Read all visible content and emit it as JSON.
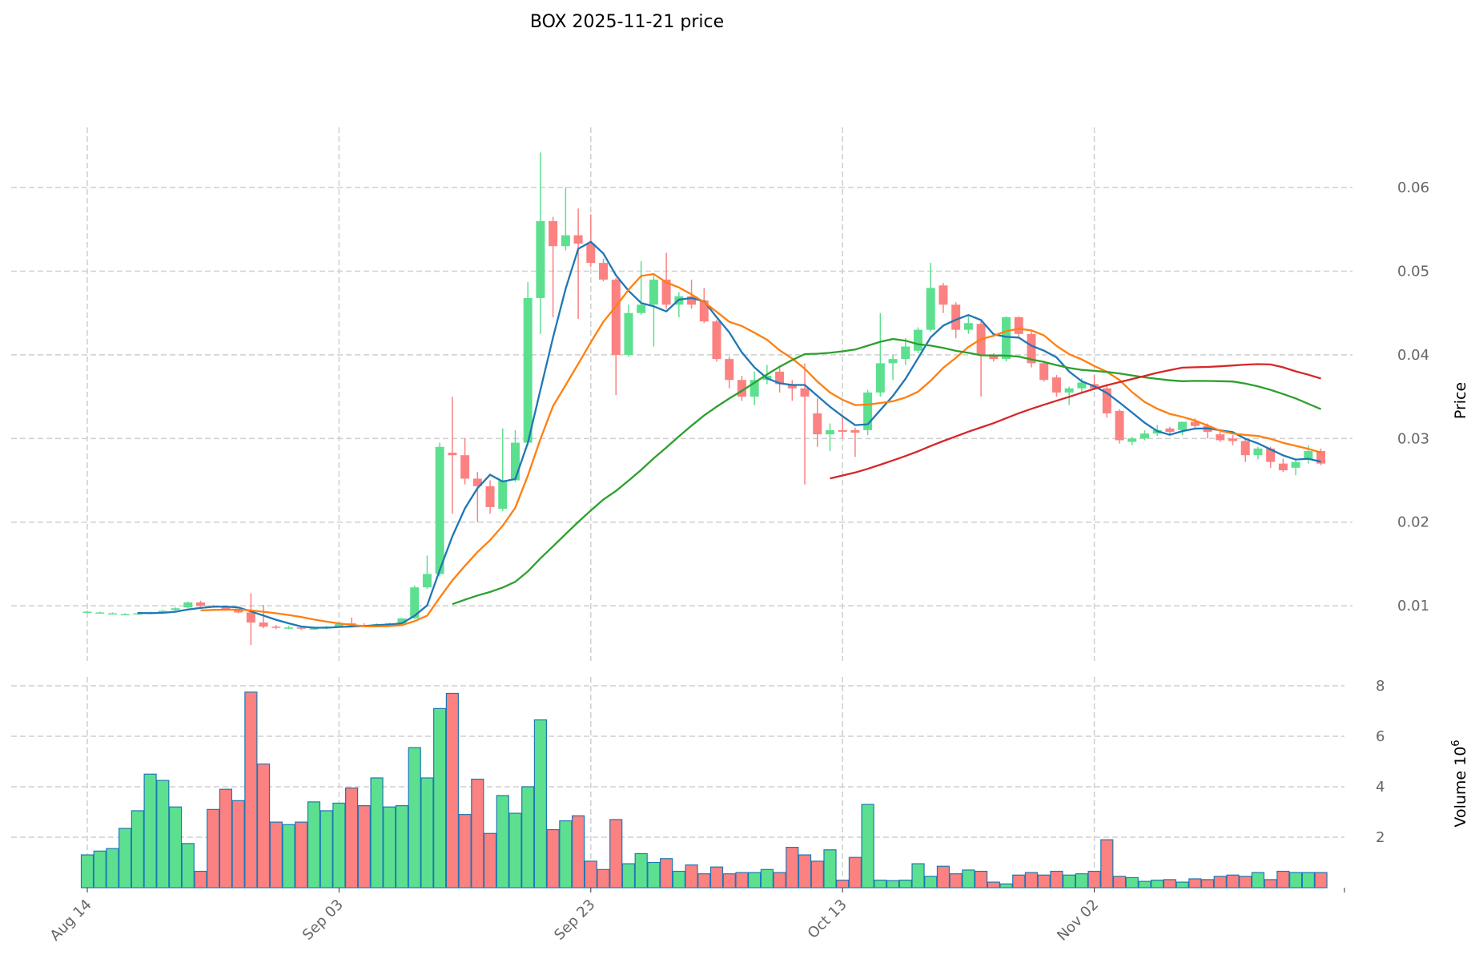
{
  "chart_data": {
    "type": "candlestick",
    "title": "BOX  2025-11-21  price",
    "ylabel": "Price",
    "volume_ylabel": "Volume  10",
    "volume_ylabel_exp": "6",
    "ylim": [
      0.0034,
      0.0672
    ],
    "volume_ylim": [
      0,
      8.35
    ],
    "y_ticks": [
      "0.01",
      "0.02",
      "0.03",
      "0.04",
      "0.05",
      "0.06"
    ],
    "y_tick_values": [
      0.01,
      0.02,
      0.03,
      0.04,
      0.05,
      0.06
    ],
    "volume_ticks": [
      "2",
      "4",
      "6",
      "8"
    ],
    "volume_tick_values": [
      2,
      4,
      6,
      8
    ],
    "x_ticks": [
      "Aug 14",
      "Sep 03",
      "Sep 23",
      "Oct 13",
      "Nov 02"
    ],
    "x_tick_days": [
      0,
      20,
      40,
      60,
      80
    ],
    "start_date": "Aug 14",
    "grid": true,
    "colors": {
      "up": "#5ce08f",
      "down": "#fc8181",
      "volume_edge": "#1f77b4",
      "ma": [
        "#1f77b4",
        "#ff7f0e",
        "#2ca02c",
        "#d62728"
      ]
    },
    "ma_windows": [
      5,
      10,
      30,
      60
    ],
    "open": [
      0.0092,
      0.0092,
      0.0091,
      0.009,
      0.009,
      0.0091,
      0.0092,
      0.0095,
      0.0098,
      0.0104,
      0.01,
      0.0099,
      0.0095,
      0.0092,
      0.008,
      0.0075,
      0.0074,
      0.0074,
      0.0073,
      0.0073,
      0.0075,
      0.0079,
      0.0077,
      0.0076,
      0.0078,
      0.0079,
      0.0085,
      0.0122,
      0.0138,
      0.0283,
      0.028,
      0.0252,
      0.0243,
      0.0216,
      0.025,
      0.0295,
      0.0468,
      0.056,
      0.053,
      0.0543,
      0.0533,
      0.051,
      0.049,
      0.04,
      0.045,
      0.046,
      0.049,
      0.046,
      0.047,
      0.0465,
      0.044,
      0.0395,
      0.037,
      0.035,
      0.037,
      0.038,
      0.0365,
      0.036,
      0.033,
      0.0305,
      0.031,
      0.031,
      0.031,
      0.0355,
      0.039,
      0.0395,
      0.0405,
      0.043,
      0.0483,
      0.046,
      0.043,
      0.0437,
      0.04,
      0.0395,
      0.0445,
      0.0425,
      0.039,
      0.0373,
      0.0355,
      0.036,
      0.0365,
      0.036,
      0.0333,
      0.0296,
      0.03,
      0.0306,
      0.0312,
      0.031,
      0.032,
      0.0315,
      0.0305,
      0.03,
      0.0297,
      0.028,
      0.0288,
      0.027,
      0.0265,
      0.0275,
      0.0285
    ],
    "high": [
      0.0094,
      0.0093,
      0.0092,
      0.0091,
      0.0092,
      0.0093,
      0.0095,
      0.0098,
      0.0105,
      0.0106,
      0.0101,
      0.01,
      0.0096,
      0.0115,
      0.0101,
      0.0077,
      0.0076,
      0.0075,
      0.0075,
      0.0076,
      0.008,
      0.0086,
      0.0079,
      0.0079,
      0.008,
      0.0085,
      0.0124,
      0.016,
      0.0295,
      0.035,
      0.03,
      0.026,
      0.025,
      0.0312,
      0.031,
      0.0487,
      0.0642,
      0.0565,
      0.06,
      0.0575,
      0.0568,
      0.0515,
      0.0492,
      0.046,
      0.0512,
      0.0495,
      0.0522,
      0.0475,
      0.049,
      0.048,
      0.0442,
      0.0398,
      0.0375,
      0.038,
      0.0388,
      0.0386,
      0.037,
      0.039,
      0.0348,
      0.0318,
      0.0328,
      0.0313,
      0.0358,
      0.045,
      0.04,
      0.042,
      0.0433,
      0.051,
      0.0486,
      0.0463,
      0.0446,
      0.044,
      0.0402,
      0.0446,
      0.0446,
      0.0428,
      0.0393,
      0.0376,
      0.0362,
      0.0372,
      0.0376,
      0.0365,
      0.0335,
      0.0302,
      0.031,
      0.0316,
      0.0314,
      0.0318,
      0.0324,
      0.0318,
      0.0308,
      0.0304,
      0.0299,
      0.029,
      0.029,
      0.0276,
      0.0275,
      0.0292,
      0.0288
    ],
    "low": [
      0.0091,
      0.0091,
      0.009,
      0.0089,
      0.0089,
      0.009,
      0.0091,
      0.0094,
      0.0097,
      0.0099,
      0.0098,
      0.0094,
      0.0091,
      0.0053,
      0.0073,
      0.0072,
      0.0072,
      0.0071,
      0.0071,
      0.0072,
      0.0074,
      0.0075,
      0.0075,
      0.0075,
      0.0077,
      0.0078,
      0.0084,
      0.012,
      0.0135,
      0.021,
      0.0245,
      0.02,
      0.021,
      0.0213,
      0.0248,
      0.0292,
      0.0425,
      0.0445,
      0.0525,
      0.0443,
      0.0505,
      0.0488,
      0.0352,
      0.0398,
      0.0448,
      0.041,
      0.0455,
      0.0445,
      0.0455,
      0.0438,
      0.0392,
      0.036,
      0.0345,
      0.034,
      0.0365,
      0.0355,
      0.0345,
      0.0245,
      0.029,
      0.0285,
      0.03,
      0.0278,
      0.0304,
      0.035,
      0.037,
      0.0388,
      0.0402,
      0.0428,
      0.045,
      0.042,
      0.0425,
      0.035,
      0.0392,
      0.0392,
      0.042,
      0.0385,
      0.0368,
      0.035,
      0.034,
      0.0355,
      0.0358,
      0.0325,
      0.0294,
      0.0292,
      0.0298,
      0.0303,
      0.0305,
      0.0304,
      0.0312,
      0.03,
      0.0296,
      0.0292,
      0.0272,
      0.0275,
      0.0265,
      0.026,
      0.0256,
      0.027,
      0.0268
    ],
    "close": [
      0.0093,
      0.0092,
      0.0091,
      0.009,
      0.0091,
      0.0092,
      0.0094,
      0.0097,
      0.0104,
      0.01,
      0.0099,
      0.0095,
      0.0092,
      0.008,
      0.0075,
      0.0074,
      0.0074,
      0.0073,
      0.0073,
      0.0075,
      0.0078,
      0.0077,
      0.0076,
      0.0078,
      0.0079,
      0.0085,
      0.0122,
      0.0138,
      0.029,
      0.028,
      0.0252,
      0.0243,
      0.0218,
      0.025,
      0.0295,
      0.0468,
      0.056,
      0.053,
      0.0543,
      0.0533,
      0.051,
      0.049,
      0.04,
      0.045,
      0.046,
      0.049,
      0.046,
      0.047,
      0.046,
      0.044,
      0.0395,
      0.037,
      0.035,
      0.037,
      0.0375,
      0.0365,
      0.036,
      0.035,
      0.0305,
      0.031,
      0.0308,
      0.0307,
      0.0355,
      0.039,
      0.0395,
      0.041,
      0.043,
      0.048,
      0.046,
      0.043,
      0.0438,
      0.04,
      0.0395,
      0.0445,
      0.0425,
      0.039,
      0.037,
      0.0355,
      0.036,
      0.0367,
      0.036,
      0.033,
      0.0298,
      0.03,
      0.0306,
      0.031,
      0.0308,
      0.032,
      0.0315,
      0.0308,
      0.0298,
      0.0297,
      0.028,
      0.0288,
      0.0272,
      0.0262,
      0.0272,
      0.0285,
      0.027
    ],
    "volume": [
      1.3,
      1.45,
      1.55,
      2.35,
      3.05,
      4.5,
      4.25,
      3.2,
      1.75,
      0.65,
      3.1,
      3.9,
      3.45,
      7.75,
      4.9,
      2.6,
      2.5,
      2.6,
      3.4,
      3.05,
      3.35,
      3.95,
      3.25,
      4.35,
      3.2,
      3.25,
      5.55,
      4.35,
      7.1,
      7.7,
      2.9,
      4.3,
      2.15,
      3.65,
      2.95,
      4.0,
      6.65,
      2.3,
      2.65,
      2.85,
      1.05,
      0.72,
      2.7,
      0.95,
      1.35,
      1.0,
      1.15,
      0.65,
      0.9,
      0.55,
      0.82,
      0.55,
      0.6,
      0.6,
      0.72,
      0.6,
      1.6,
      1.3,
      1.05,
      1.5,
      0.3,
      1.2,
      3.3,
      0.3,
      0.28,
      0.3,
      0.95,
      0.45,
      0.85,
      0.55,
      0.7,
      0.65,
      0.22,
      0.15,
      0.5,
      0.6,
      0.5,
      0.65,
      0.5,
      0.55,
      0.65,
      1.9,
      0.45,
      0.4,
      0.25,
      0.3,
      0.32,
      0.22,
      0.35,
      0.32,
      0.45,
      0.5,
      0.45,
      0.6,
      0.32,
      0.65,
      0.6,
      0.6,
      0.6
    ]
  }
}
